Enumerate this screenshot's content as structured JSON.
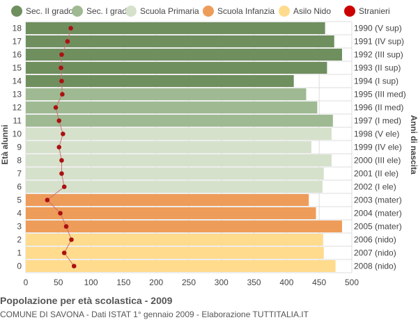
{
  "chart_data": {
    "type": "bar",
    "orientation": "horizontal",
    "yaxis_left_label": "Età alunni",
    "yaxis_right_label": "Anni di nascita",
    "x_ticks": [
      0,
      50,
      100,
      150,
      200,
      250,
      300,
      350,
      400,
      450,
      500
    ],
    "xlim": [
      0,
      500
    ],
    "grid": true,
    "legend": {
      "position": "top",
      "entries": [
        {
          "label": "Sec. II grado",
          "color": "#6f8f5f"
        },
        {
          "label": "Sec. I grado",
          "color": "#9fba92"
        },
        {
          "label": "Scuola Primaria",
          "color": "#d6e1cc"
        },
        {
          "label": "Scuola Infanzia",
          "color": "#ee9c59"
        },
        {
          "label": "Asilo Nido",
          "color": "#ffdb8e"
        },
        {
          "label": "Stranieri",
          "color": "#cc0000"
        }
      ]
    },
    "bars": [
      {
        "age": "18",
        "year": "1990 (V sup)",
        "value": 459,
        "group": 0,
        "stranieri": 69
      },
      {
        "age": "17",
        "year": "1991 (IV sup)",
        "value": 473,
        "group": 0,
        "stranieri": 64
      },
      {
        "age": "16",
        "year": "1992 (III sup)",
        "value": 485,
        "group": 0,
        "stranieri": 55
      },
      {
        "age": "15",
        "year": "1993 (II sup)",
        "value": 462,
        "group": 0,
        "stranieri": 54
      },
      {
        "age": "14",
        "year": "1994 (I sup)",
        "value": 411,
        "group": 0,
        "stranieri": 55
      },
      {
        "age": "13",
        "year": "1995 (III med)",
        "value": 430,
        "group": 1,
        "stranieri": 56
      },
      {
        "age": "12",
        "year": "1996 (II med)",
        "value": 447,
        "group": 1,
        "stranieri": 46
      },
      {
        "age": "11",
        "year": "1997 (I med)",
        "value": 471,
        "group": 1,
        "stranieri": 51
      },
      {
        "age": "10",
        "year": "1998 (V ele)",
        "value": 469,
        "group": 2,
        "stranieri": 57
      },
      {
        "age": "9",
        "year": "1999 (IV ele)",
        "value": 438,
        "group": 2,
        "stranieri": 51
      },
      {
        "age": "8",
        "year": "2000 (III ele)",
        "value": 469,
        "group": 2,
        "stranieri": 55
      },
      {
        "age": "7",
        "year": "2001 (II ele)",
        "value": 457,
        "group": 2,
        "stranieri": 55
      },
      {
        "age": "6",
        "year": "2002 (I ele)",
        "value": 455,
        "group": 2,
        "stranieri": 59
      },
      {
        "age": "5",
        "year": "2003 (mater)",
        "value": 434,
        "group": 3,
        "stranieri": 33
      },
      {
        "age": "4",
        "year": "2004 (mater)",
        "value": 445,
        "group": 3,
        "stranieri": 53
      },
      {
        "age": "3",
        "year": "2005 (mater)",
        "value": 485,
        "group": 3,
        "stranieri": 62
      },
      {
        "age": "2",
        "year": "2006 (nido)",
        "value": 456,
        "group": 4,
        "stranieri": 70
      },
      {
        "age": "1",
        "year": "2007 (nido)",
        "value": 457,
        "group": 4,
        "stranieri": 59
      },
      {
        "age": "0",
        "year": "2008 (nido)",
        "value": 475,
        "group": 4,
        "stranieri": 74
      }
    ]
  },
  "caption": {
    "title": "Popolazione per età scolastica - 2009",
    "subtitle": "COMUNE DI SAVONA - Dati ISTAT 1° gennaio 2009 - Elaborazione TUTTITALIA.IT"
  },
  "colors": {
    "grid": "#dddddd",
    "stranieri_line": "#c87070",
    "stranieri_dot": "#aa1111"
  }
}
